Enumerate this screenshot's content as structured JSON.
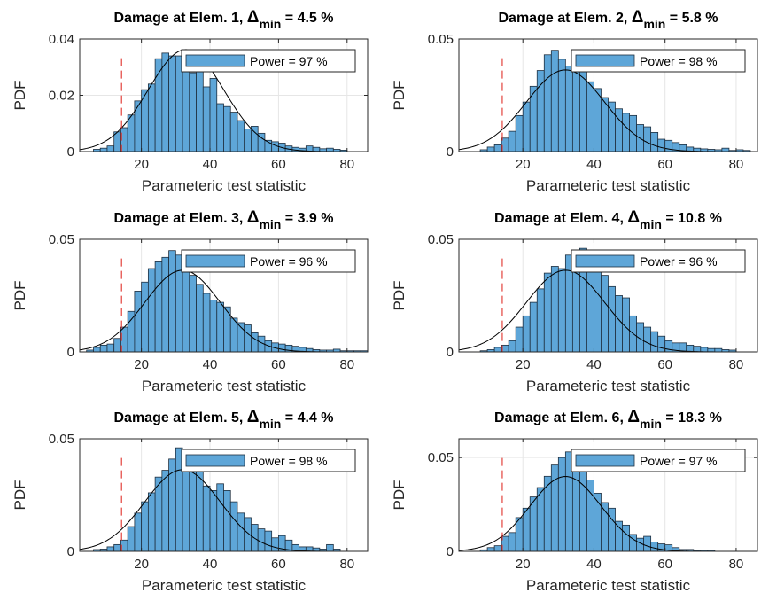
{
  "figure": {
    "background": "#ffffff",
    "bar_color": "#5ea6d8",
    "bar_edge": "#1f2f3f",
    "curve_color": "#000000",
    "threshold_color": "#e0322b",
    "grid_color": "#e6e6e6"
  },
  "chart_data": [
    {
      "type": "bar",
      "title_prefix": "Damage at Elem. 1, ",
      "title_symbol": "Δ",
      "title_subscript": "min",
      "title_suffix": " = 4.5  %",
      "xlabel": "Parameteric test statistic",
      "ylabel": "PDF",
      "xlim": [
        2,
        86
      ],
      "ylim": [
        0,
        0.04
      ],
      "xticks": [
        "20",
        "40",
        "60",
        "80"
      ],
      "xtick_values": [
        20,
        40,
        60,
        80
      ],
      "yticks": [
        "0",
        "0.02",
        "0.04"
      ],
      "ytick_values": [
        0,
        0.02,
        0.04
      ],
      "legend": "Power = 97  %",
      "legend_position": "top-right",
      "threshold_x": 14.2,
      "bin_start": 6,
      "bin_width": 2,
      "values": [
        0.0008,
        0.0012,
        0.002,
        0.007,
        0.0085,
        0.013,
        0.018,
        0.022,
        0.024,
        0.033,
        0.035,
        0.034,
        0.034,
        0.031,
        0.028,
        0.029,
        0.023,
        0.026,
        0.017,
        0.016,
        0.014,
        0.011,
        0.008,
        0.009,
        0.0065,
        0.004,
        0.0035,
        0.003,
        0.002,
        0.0015,
        0.0012,
        0.002,
        0.0015,
        0.001,
        0.0012,
        0.0008,
        0.0005
      ],
      "curve": {
        "mean": 33,
        "sd": 11
      }
    },
    {
      "type": "bar",
      "title_prefix": "Damage at Elem. 2, ",
      "title_symbol": "Δ",
      "title_subscript": "min",
      "title_suffix": " = 5.8  %",
      "xlabel": "Parameteric test statistic",
      "ylabel": "PDF",
      "xlim": [
        2,
        86
      ],
      "ylim": [
        0,
        0.05
      ],
      "xticks": [
        "20",
        "40",
        "60",
        "80"
      ],
      "xtick_values": [
        20,
        40,
        60,
        80
      ],
      "yticks": [
        "0",
        "0.05"
      ],
      "ytick_values": [
        0,
        0.05
      ],
      "legend": "Power = 98  %",
      "legend_position": "top-right",
      "threshold_x": 14.2,
      "bin_start": 8,
      "bin_width": 2,
      "values": [
        0.0008,
        0.002,
        0.003,
        0.006,
        0.009,
        0.016,
        0.022,
        0.029,
        0.036,
        0.043,
        0.045,
        0.041,
        0.038,
        0.044,
        0.037,
        0.031,
        0.028,
        0.024,
        0.022,
        0.019,
        0.017,
        0.016,
        0.012,
        0.011,
        0.0085,
        0.0055,
        0.005,
        0.004,
        0.003,
        0.002,
        0.0015,
        0.0012,
        0.001,
        0.0008,
        0.0015,
        0.0005,
        0.0008,
        0.0005
      ],
      "curve": {
        "mean": 32,
        "sd": 11
      }
    },
    {
      "type": "bar",
      "title_prefix": "Damage at Elem. 3, ",
      "title_symbol": "Δ",
      "title_subscript": "min",
      "title_suffix": " = 3.9  %",
      "xlabel": "Parameteric test statistic",
      "ylabel": "PDF",
      "xlim": [
        2,
        86
      ],
      "ylim": [
        0,
        0.05
      ],
      "xticks": [
        "20",
        "40",
        "60",
        "80"
      ],
      "xtick_values": [
        20,
        40,
        60,
        80
      ],
      "yticks": [
        "0",
        "0.05"
      ],
      "ytick_values": [
        0,
        0.05
      ],
      "legend": "Power = 96  %",
      "legend_position": "top-right",
      "threshold_x": 14.2,
      "bin_start": 4,
      "bin_width": 2,
      "values": [
        0.0008,
        0.002,
        0.003,
        0.0035,
        0.006,
        0.011,
        0.018,
        0.027,
        0.031,
        0.037,
        0.04,
        0.042,
        0.045,
        0.043,
        0.037,
        0.034,
        0.03,
        0.026,
        0.023,
        0.022,
        0.02,
        0.015,
        0.013,
        0.012,
        0.0085,
        0.007,
        0.005,
        0.004,
        0.0035,
        0.003,
        0.0025,
        0.002,
        0.0015,
        0.001,
        0.0008,
        0.0008,
        0.0012,
        0.0005,
        0.0005,
        0.0005,
        0.0005
      ],
      "curve": {
        "mean": 32,
        "sd": 11
      }
    },
    {
      "type": "bar",
      "title_prefix": "Damage at Elem. 4, ",
      "title_symbol": "Δ",
      "title_subscript": "min",
      "title_suffix": " = 10.8  %",
      "xlabel": "Parameteric test statistic",
      "ylabel": "PDF",
      "xlim": [
        2,
        86
      ],
      "ylim": [
        0,
        0.05
      ],
      "xticks": [
        "20",
        "40",
        "60",
        "80"
      ],
      "xtick_values": [
        20,
        40,
        60,
        80
      ],
      "yticks": [
        "0",
        "0.05"
      ],
      "ytick_values": [
        0,
        0.05
      ],
      "legend": "Power = 96  %",
      "legend_position": "top-right",
      "threshold_x": 14.2,
      "bin_start": 8,
      "bin_width": 2,
      "values": [
        0.0005,
        0.001,
        0.002,
        0.003,
        0.005,
        0.011,
        0.016,
        0.022,
        0.028,
        0.035,
        0.038,
        0.037,
        0.043,
        0.042,
        0.046,
        0.04,
        0.044,
        0.034,
        0.029,
        0.025,
        0.024,
        0.016,
        0.013,
        0.011,
        0.009,
        0.007,
        0.005,
        0.004,
        0.004,
        0.003,
        0.0025,
        0.002,
        0.0015,
        0.0015,
        0.001,
        0.0008
      ],
      "curve": {
        "mean": 32,
        "sd": 11
      }
    },
    {
      "type": "bar",
      "title_prefix": "Damage at Elem. 5, ",
      "title_symbol": "Δ",
      "title_subscript": "min",
      "title_suffix": " = 4.4  %",
      "xlabel": "Parameteric test statistic",
      "ylabel": "PDF",
      "xlim": [
        2,
        86
      ],
      "ylim": [
        0,
        0.05
      ],
      "xticks": [
        "20",
        "40",
        "60",
        "80"
      ],
      "xtick_values": [
        20,
        40,
        60,
        80
      ],
      "yticks": [
        "0",
        "0.05"
      ],
      "ytick_values": [
        0,
        0.05
      ],
      "legend": "Power = 98  %",
      "legend_position": "top-right",
      "threshold_x": 14.2,
      "bin_start": 6,
      "bin_width": 2,
      "values": [
        0.0008,
        0.001,
        0.002,
        0.003,
        0.005,
        0.011,
        0.017,
        0.022,
        0.026,
        0.033,
        0.036,
        0.041,
        0.046,
        0.043,
        0.039,
        0.038,
        0.029,
        0.027,
        0.03,
        0.027,
        0.022,
        0.017,
        0.015,
        0.012,
        0.01,
        0.009,
        0.006,
        0.007,
        0.005,
        0.003,
        0.002,
        0.002,
        0.0015,
        0.001,
        0.003,
        0.001
      ],
      "curve": {
        "mean": 32,
        "sd": 11
      }
    },
    {
      "type": "bar",
      "title_prefix": "Damage at Elem. 6, ",
      "title_symbol": "Δ",
      "title_subscript": "min",
      "title_suffix": " = 18.3  %",
      "xlabel": "Parameteric test statistic",
      "ylabel": "PDF",
      "xlim": [
        2,
        86
      ],
      "ylim": [
        0,
        0.06
      ],
      "xticks": [
        "20",
        "40",
        "60",
        "80"
      ],
      "xtick_values": [
        20,
        40,
        60,
        80
      ],
      "yticks": [
        "0",
        "0.05"
      ],
      "ytick_values": [
        0,
        0.05
      ],
      "legend": "Power = 97  %",
      "legend_position": "top-right",
      "threshold_x": 14.2,
      "bin_start": 8,
      "bin_width": 2,
      "values": [
        0.0008,
        0.002,
        0.003,
        0.008,
        0.01,
        0.018,
        0.023,
        0.029,
        0.034,
        0.04,
        0.046,
        0.05,
        0.053,
        0.044,
        0.043,
        0.038,
        0.031,
        0.026,
        0.023,
        0.016,
        0.014,
        0.009,
        0.007,
        0.008,
        0.005,
        0.004,
        0.0035,
        0.002,
        0.001,
        0.001,
        0.0005,
        0.0005,
        0.0005
      ],
      "curve": {
        "mean": 32,
        "sd": 10
      }
    }
  ]
}
